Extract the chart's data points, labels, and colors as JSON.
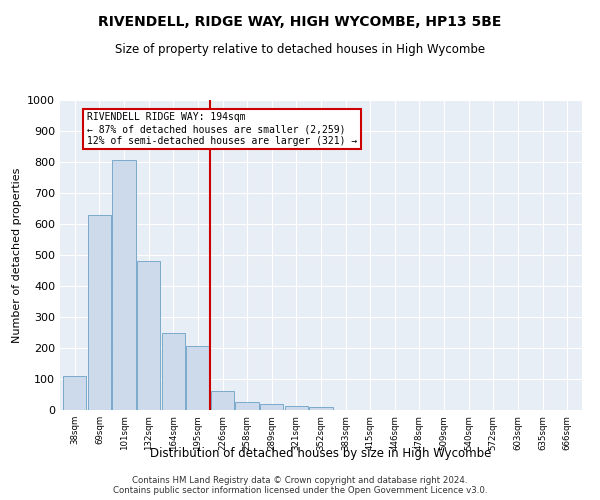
{
  "title": "RIVENDELL, RIDGE WAY, HIGH WYCOMBE, HP13 5BE",
  "subtitle": "Size of property relative to detached houses in High Wycombe",
  "xlabel": "Distribution of detached houses by size in High Wycombe",
  "ylabel": "Number of detached properties",
  "bar_color": "#ccdaeb",
  "bar_edge_color": "#7aaacb",
  "background_color": "#e8eef5",
  "grid_color": "#ffffff",
  "categories": [
    "38sqm",
    "69sqm",
    "101sqm",
    "132sqm",
    "164sqm",
    "195sqm",
    "226sqm",
    "258sqm",
    "289sqm",
    "321sqm",
    "352sqm",
    "383sqm",
    "415sqm",
    "446sqm",
    "478sqm",
    "509sqm",
    "540sqm",
    "572sqm",
    "603sqm",
    "635sqm",
    "666sqm"
  ],
  "values": [
    110,
    630,
    805,
    480,
    250,
    207,
    60,
    25,
    18,
    12,
    11,
    0,
    0,
    0,
    0,
    0,
    0,
    0,
    0,
    0,
    0
  ],
  "ylim": [
    0,
    1000
  ],
  "yticks": [
    0,
    100,
    200,
    300,
    400,
    500,
    600,
    700,
    800,
    900,
    1000
  ],
  "property_line_x": 5.5,
  "annotation_title": "RIVENDELL RIDGE WAY: 194sqm",
  "annotation_line1": "← 87% of detached houses are smaller (2,259)",
  "annotation_line2": "12% of semi-detached houses are larger (321) →",
  "annotation_box_color": "#ffffff",
  "annotation_border_color": "#cc0000",
  "vline_color": "#cc0000",
  "footer1": "Contains HM Land Registry data © Crown copyright and database right 2024.",
  "footer2": "Contains public sector information licensed under the Open Government Licence v3.0."
}
